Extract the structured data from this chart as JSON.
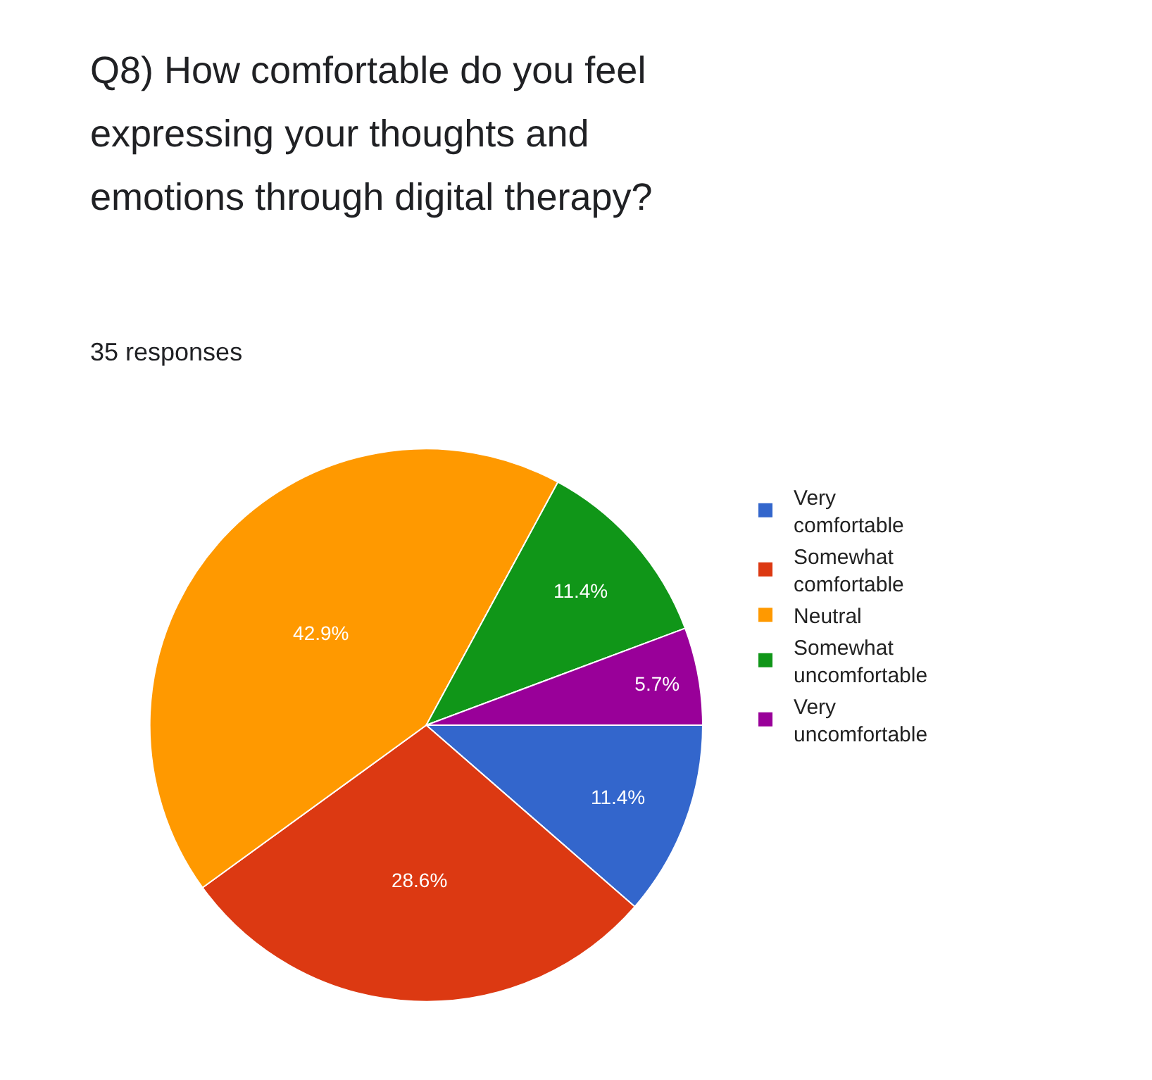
{
  "chart_data": {
    "type": "pie",
    "title": "Q8) How comfortable do you feel expressing your thoughts and emotions through digital therapy?",
    "subtitle": "35 responses",
    "categories": [
      "Very comfortable",
      "Somewhat comfortable",
      "Neutral",
      "Somewhat uncomfortable",
      "Very uncomfortable"
    ],
    "values": [
      11.4,
      28.6,
      42.9,
      11.4,
      5.7
    ],
    "value_labels": [
      "11.4%",
      "28.6%",
      "42.9%",
      "11.4%",
      "5.7%"
    ],
    "colors": [
      "#3366cc",
      "#dc3912",
      "#ff9900",
      "#109618",
      "#990099"
    ],
    "legend": "right"
  }
}
